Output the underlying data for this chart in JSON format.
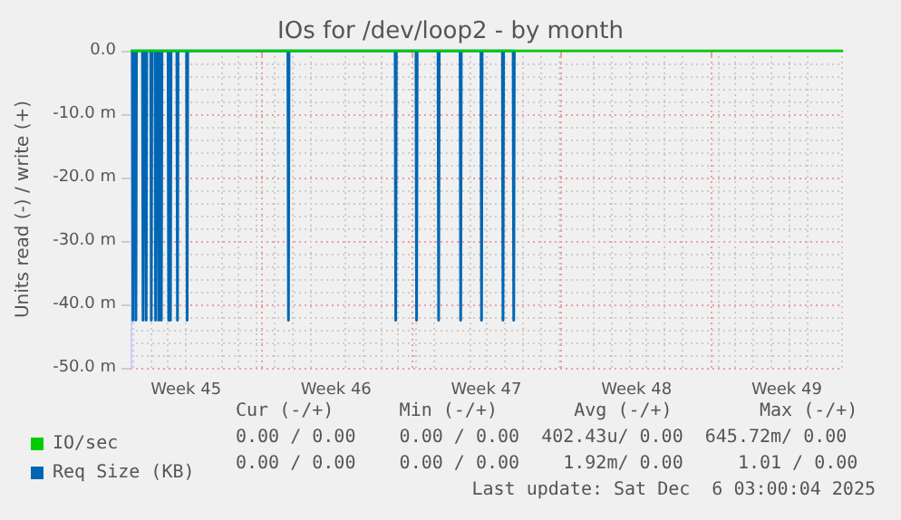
{
  "chart_data": {
    "type": "line",
    "title": "IOs for /dev/loop2 - by month",
    "ylabel": "Units read (-) / write (+)",
    "xlim": [
      "2025-11-03T22:00",
      "2025-12-07T03:00"
    ],
    "xticks": [
      {
        "value": "2025-11-06T12:00",
        "label": "Week 45"
      },
      {
        "value": "2025-11-10",
        "label": null
      },
      {
        "value": "2025-11-13T12:00",
        "label": "Week 46"
      },
      {
        "value": "2025-11-17",
        "label": null
      },
      {
        "value": "2025-11-20T12:00",
        "label": "Week 47"
      },
      {
        "value": "2025-11-24",
        "label": null
      },
      {
        "value": "2025-11-27T12:00",
        "label": "Week 48"
      },
      {
        "value": "2025-12-01",
        "label": null
      },
      {
        "value": "2025-12-04T12:00",
        "label": "Week 49"
      }
    ],
    "ylim": [
      -50,
      0
    ],
    "yticks": [
      {
        "value": -50,
        "label": "-50.0 m"
      },
      {
        "value": -40,
        "label": "-40.0 m"
      },
      {
        "value": -30,
        "label": "-30.0 m"
      },
      {
        "value": -20,
        "label": "-20.0 m"
      },
      {
        "value": -10,
        "label": "-10.0 m"
      },
      {
        "value": 0,
        "label": "0.0"
      }
    ],
    "grid": true,
    "legend": "bottom left",
    "series": [
      {
        "name": "IO/sec",
        "color": "#00cc00",
        "x": [
          "2025-11-03T22:00",
          "2025-12-07T03:00"
        ],
        "values": [
          0,
          0
        ]
      },
      {
        "name": "Req Size (KB)",
        "color": "#0066b3",
        "x": [
          "2025-11-03T22:00",
          "2025-11-04T00:00",
          "2025-11-04T00:40",
          "2025-11-04T01:20",
          "2025-11-04T03:20",
          "2025-11-04T04:00",
          "2025-11-04T04:40",
          "2025-11-04T11:20",
          "2025-11-04T12:00",
          "2025-11-04T12:40",
          "2025-11-04T14:50",
          "2025-11-04T15:30",
          "2025-11-04T16:10",
          "2025-11-04T20:35",
          "2025-11-04T21:15",
          "2025-11-04T21:55",
          "2025-11-05T01:20",
          "2025-11-05T02:00",
          "2025-11-05T02:40",
          "2025-11-05T04:50",
          "2025-11-05T05:30",
          "2025-11-05T06:10",
          "2025-11-05T07:50",
          "2025-11-05T08:30",
          "2025-11-05T09:10",
          "2025-11-05T16:00",
          "2025-11-05T16:40",
          "2025-11-05T17:20",
          "2025-11-05T18:00",
          "2025-11-05T18:40",
          "2025-11-05T19:20",
          "2025-11-06T01:50",
          "2025-11-06T02:30",
          "2025-11-06T03:10",
          "2025-11-06T12:40",
          "2025-11-06T13:20",
          "2025-11-06T14:00",
          "2025-11-11T06:00",
          "2025-11-11T06:40",
          "2025-11-11T07:20",
          "2025-11-16T06:00",
          "2025-11-16T06:40",
          "2025-11-16T07:20",
          "2025-11-17T05:20",
          "2025-11-17T06:00",
          "2025-11-17T06:40",
          "2025-11-18T06:00",
          "2025-11-18T06:40",
          "2025-11-18T07:20",
          "2025-11-19T06:40",
          "2025-11-19T07:20",
          "2025-11-19T08:00",
          "2025-11-20T06:00",
          "2025-11-20T06:40",
          "2025-11-20T07:20",
          "2025-11-21T06:00",
          "2025-11-21T06:40",
          "2025-11-21T07:20",
          "2025-11-21T18:00",
          "2025-11-21T18:40",
          "2025-11-21T19:20"
        ],
        "values": [
          0,
          0,
          -42.5,
          0,
          0,
          -42.5,
          0,
          0,
          -42.5,
          0,
          0,
          -42.5,
          0,
          0,
          -42.5,
          0,
          0,
          -42.5,
          0,
          0,
          -42.5,
          0,
          0,
          -42.5,
          0,
          0,
          -42.5,
          0,
          0,
          -42.5,
          0,
          0,
          -42.5,
          0,
          0,
          -42.5,
          0,
          0,
          -42.5,
          0,
          0,
          -42.5,
          0,
          0,
          -42.5,
          0,
          0,
          -42.5,
          0,
          0,
          -42.5,
          0,
          0,
          -42.5,
          0,
          0,
          -42.5,
          0,
          0,
          -42.5,
          0
        ]
      }
    ],
    "annotations": [
      "Cur (-/+)      Min (-/+)       Avg (-/+)        Max (-/+)",
      "0.00 / 0.00    0.00 / 0.00  402.43u/ 0.00  645.72m/ 0.00",
      "0.00 / 0.00    0.00 / 0.00    1.92m/ 0.00     1.01 / 0.00",
      "Last update: Sat Dec  6 03:00:04 2025"
    ]
  }
}
